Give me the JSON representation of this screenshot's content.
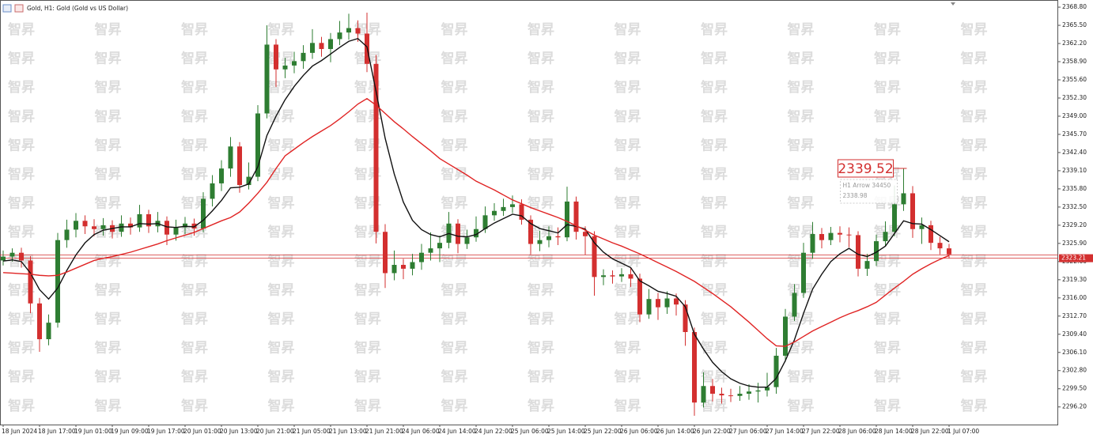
{
  "chart_data": {
    "type": "candlestick",
    "title": "Gold, H1:  Gold (Gold vs US Dollar)",
    "watermark": "智昇",
    "categories": [
      "18 Jun 2024",
      null,
      null,
      null,
      "18 Jun 17:00",
      null,
      null,
      null,
      "19 Jun 01:00",
      null,
      null,
      null,
      "19 Jun 09:00",
      null,
      null,
      null,
      "19 Jun 17:00",
      null,
      null,
      null,
      "20 Jun 01:00",
      null,
      null,
      null,
      "20 Jun 13:00",
      null,
      null,
      null,
      "20 Jun 21:00",
      null,
      null,
      null,
      "21 Jun 05:00",
      null,
      null,
      null,
      "21 Jun 13:00",
      null,
      null,
      null,
      "21 Jun 21:00",
      null,
      null,
      null,
      "24 Jun 06:00",
      null,
      null,
      null,
      "24 Jun 14:00",
      null,
      null,
      null,
      "24 Jun 22:00",
      null,
      null,
      null,
      "25 Jun 06:00",
      null,
      null,
      null,
      "25 Jun 14:00",
      null,
      null,
      null,
      "25 Jun 22:00",
      null,
      null,
      null,
      "26 Jun 06:00",
      null,
      null,
      null,
      "26 Jun 14:00",
      null,
      null,
      null,
      "26 Jun 22:00",
      null,
      null,
      null,
      "27 Jun 06:00",
      null,
      null,
      null,
      "27 Jun 14:00",
      null,
      null,
      null,
      "27 Jun 22:00",
      null,
      null,
      null,
      "28 Jun 06:00",
      null,
      null,
      null,
      "28 Jun 14:00",
      null,
      null,
      null,
      "28 Jun 22:00",
      null,
      null,
      null,
      "1 Jul 07:00"
    ],
    "open": [
      2322.8,
      2323.5,
      2324.2,
      2322.8,
      2315.0,
      2308.5,
      2311.5,
      2326.5,
      2328.4,
      2330.0,
      2329.0,
      2328.5,
      2329.2,
      2328.0,
      2329.5,
      2328.8,
      2331.2,
      2329.0,
      2330.0,
      2327.5,
      2328.8,
      2329.5,
      2328.6,
      2334.0,
      2336.8,
      2339.5,
      2343.5,
      2336.5,
      2338.0,
      2349.5,
      2362.0,
      2357.5,
      2358.2,
      2359.0,
      2360.5,
      2362.3,
      2361.2,
      2363.0,
      2364.2,
      2365.0,
      2364.0,
      2358.5,
      2328.0,
      2320.5,
      2322.0,
      2321.3,
      2322.5,
      2324.2,
      2325.0,
      2326.0,
      2329.5,
      2325.8,
      2327.0,
      2328.5,
      2331.0,
      2331.8,
      2332.5,
      2333.0,
      2330.2,
      2325.8,
      2326.5,
      2327.2,
      2327.0,
      2333.5,
      2328.0,
      2327.2,
      2319.8,
      2320.1,
      2319.9,
      2320.3,
      2319.5,
      2313.0,
      2315.8,
      2314.3,
      2315.9,
      2314.8,
      2309.8,
      2297.0,
      2300.0,
      2298.6,
      2298.3,
      2298.2,
      2298.6,
      2299.0,
      2299.2,
      2299.8,
      2305.5,
      2312.6,
      2316.9,
      2324.2,
      2327.6,
      2326.5,
      2327.8,
      2327.5,
      2327.4,
      2321.3,
      2322.7,
      2326.3,
      2328.0,
      2333.0,
      2335.0,
      2328.5,
      2329.2,
      2326.0,
      2325.0
    ],
    "high": [
      2324.6,
      2325.0,
      2325.1,
      2323.6,
      2316.0,
      2313.0,
      2327.8,
      2330.2,
      2331.4,
      2331.0,
      2330.3,
      2330.5,
      2330.1,
      2331.0,
      2330.6,
      2332.9,
      2332.0,
      2331.6,
      2330.8,
      2330.2,
      2330.7,
      2330.4,
      2335.2,
      2338.3,
      2341.0,
      2345.2,
      2344.3,
      2340.6,
      2351.0,
      2365.5,
      2363.0,
      2359.6,
      2360.7,
      2361.9,
      2364.8,
      2363.4,
      2364.1,
      2366.3,
      2367.6,
      2366.4,
      2367.8,
      2360.1,
      2329.4,
      2324.6,
      2323.1,
      2324.0,
      2325.8,
      2327.9,
      2327.3,
      2331.6,
      2330.3,
      2328.4,
      2330.8,
      2332.6,
      2333.2,
      2334.0,
      2334.6,
      2333.9,
      2331.0,
      2328.2,
      2329.0,
      2328.8,
      2336.2,
      2334.4,
      2329.0,
      2328.1,
      2321.2,
      2321.0,
      2321.4,
      2321.5,
      2320.4,
      2317.6,
      2316.9,
      2317.2,
      2316.8,
      2315.6,
      2310.6,
      2302.5,
      2301.3,
      2299.7,
      2299.5,
      2300.0,
      2300.3,
      2300.6,
      2302.4,
      2306.9,
      2314.0,
      2318.5,
      2326.0,
      2329.8,
      2328.7,
      2328.9,
      2329.0,
      2328.8,
      2328.1,
      2324.0,
      2327.5,
      2329.9,
      2336.4,
      2339.52,
      2336.3,
      2330.6,
      2330.0,
      2327.1,
      2325.8
    ],
    "low": [
      2321.9,
      2322.6,
      2321.5,
      2313.2,
      2306.2,
      2307.4,
      2310.6,
      2325.1,
      2327.0,
      2327.6,
      2327.2,
      2327.3,
      2326.8,
      2327.1,
      2327.5,
      2328.0,
      2327.8,
      2327.9,
      2325.6,
      2326.4,
      2327.6,
      2327.3,
      2327.9,
      2332.6,
      2335.4,
      2338.0,
      2335.1,
      2335.7,
      2337.2,
      2348.6,
      2354.3,
      2355.9,
      2356.8,
      2357.6,
      2359.4,
      2359.8,
      2358.8,
      2361.9,
      2362.9,
      2362.5,
      2357.0,
      2325.9,
      2317.8,
      2319.2,
      2319.4,
      2320.1,
      2321.1,
      2322.8,
      2322.5,
      2325.0,
      2324.1,
      2324.9,
      2326.2,
      2327.8,
      2330.0,
      2330.9,
      2331.4,
      2329.3,
      2323.9,
      2324.5,
      2325.2,
      2325.6,
      2326.3,
      2326.6,
      2323.8,
      2316.4,
      2318.3,
      2318.6,
      2318.9,
      2318.0,
      2311.6,
      2312.2,
      2312.0,
      2313.1,
      2312.8,
      2307.3,
      2294.6,
      2296.1,
      2297.2,
      2296.8,
      2297.1,
      2297.3,
      2297.5,
      2297.0,
      2298.1,
      2298.6,
      2304.4,
      2311.8,
      2316.0,
      2323.1,
      2325.0,
      2325.6,
      2326.1,
      2325.2,
      2319.9,
      2320.0,
      2321.8,
      2325.4,
      2327.2,
      2331.8,
      2326.9,
      2325.8,
      2324.7,
      2323.9,
      2323.2
    ],
    "close": [
      2323.5,
      2324.2,
      2322.8,
      2315.0,
      2308.5,
      2311.5,
      2326.5,
      2328.4,
      2330.0,
      2329.0,
      2328.5,
      2329.2,
      2328.0,
      2329.5,
      2328.8,
      2331.2,
      2329.0,
      2330.0,
      2327.5,
      2328.8,
      2329.5,
      2328.6,
      2334.0,
      2336.8,
      2339.5,
      2343.5,
      2336.5,
      2338.0,
      2349.5,
      2362.0,
      2357.5,
      2358.2,
      2359.0,
      2360.5,
      2362.3,
      2361.2,
      2363.0,
      2364.2,
      2365.0,
      2364.0,
      2358.5,
      2328.0,
      2320.5,
      2322.0,
      2321.3,
      2322.5,
      2324.2,
      2325.0,
      2326.0,
      2329.5,
      2325.8,
      2327.0,
      2328.5,
      2331.0,
      2331.8,
      2332.5,
      2333.0,
      2330.2,
      2325.8,
      2326.5,
      2327.2,
      2327.0,
      2333.5,
      2328.0,
      2327.2,
      2319.8,
      2320.1,
      2319.9,
      2320.3,
      2319.5,
      2313.0,
      2315.8,
      2314.3,
      2315.9,
      2314.8,
      2309.8,
      2297.0,
      2300.0,
      2298.6,
      2298.3,
      2298.2,
      2298.6,
      2299.0,
      2299.2,
      2299.8,
      2305.5,
      2312.6,
      2316.9,
      2324.2,
      2327.6,
      2326.5,
      2327.8,
      2327.5,
      2327.4,
      2321.3,
      2322.7,
      2326.3,
      2328.0,
      2333.0,
      2335.0,
      2328.5,
      2329.2,
      2326.0,
      2325.0,
      2323.9
    ],
    "up_color": "#2e7d32",
    "down_color": "#d32f2f",
    "series": [
      {
        "color": "#111111",
        "values": [
          2322.7,
          2322.9,
          2322.6,
          2320.5,
          2317.5,
          2315.8,
          2317.8,
          2321.0,
          2323.8,
          2326.0,
          2327.5,
          2328.3,
          2328.6,
          2328.9,
          2328.9,
          2329.5,
          2329.4,
          2329.5,
          2328.9,
          2328.8,
          2329.0,
          2328.9,
          2330.1,
          2331.8,
          2333.7,
          2336.0,
          2336.1,
          2336.7,
          2339.8,
          2345.5,
          2349.0,
          2352.0,
          2354.4,
          2356.4,
          2358.1,
          2359.1,
          2360.3,
          2361.5,
          2362.6,
          2363.1,
          2361.6,
          2353.5,
          2345.0,
          2338.5,
          2333.4,
          2330.1,
          2328.4,
          2327.5,
          2327.1,
          2327.7,
          2327.2,
          2327.1,
          2327.5,
          2328.6,
          2329.6,
          2330.4,
          2331.2,
          2330.9,
          2329.5,
          2328.6,
          2328.2,
          2327.8,
          2329.3,
          2329.0,
          2328.5,
          2326.0,
          2324.3,
          2323.1,
          2322.3,
          2321.5,
          2319.1,
          2318.2,
          2317.2,
          2316.8,
          2316.3,
          2314.4,
          2309.4,
          2306.7,
          2304.3,
          2302.6,
          2301.3,
          2300.5,
          2300.0,
          2299.8,
          2299.8,
          2301.4,
          2304.6,
          2308.4,
          2313.2,
          2317.6,
          2320.3,
          2322.6,
          2324.0,
          2325.0,
          2323.9,
          2323.5,
          2324.3,
          2325.4,
          2327.7,
          2330.0,
          2329.5,
          2329.4,
          2328.4,
          2327.3,
          2326.2
        ]
      },
      {
        "color": "#e02424",
        "values": [
          2320.6,
          2320.5,
          2320.4,
          2320.3,
          2320.1,
          2320.0,
          2320.1,
          2320.7,
          2321.4,
          2322.1,
          2322.8,
          2323.2,
          2323.5,
          2323.9,
          2324.3,
          2324.8,
          2325.3,
          2325.8,
          2326.4,
          2326.9,
          2327.4,
          2327.9,
          2328.6,
          2329.3,
          2330.0,
          2330.6,
          2331.6,
          2333.2,
          2335.0,
          2337.0,
          2339.5,
          2341.8,
          2343.0,
          2344.2,
          2345.3,
          2346.3,
          2347.3,
          2348.5,
          2349.8,
          2351.2,
          2352.2,
          2351.0,
          2349.5,
          2348.0,
          2346.7,
          2345.3,
          2344.0,
          2342.7,
          2341.3,
          2340.3,
          2339.3,
          2338.3,
          2337.2,
          2336.4,
          2335.6,
          2334.7,
          2333.8,
          2333.1,
          2332.4,
          2331.8,
          2331.2,
          2330.6,
          2329.9,
          2329.1,
          2328.3,
          2327.4,
          2326.7,
          2326.0,
          2325.4,
          2324.7,
          2324.0,
          2323.2,
          2322.4,
          2321.6,
          2320.8,
          2319.9,
          2319.0,
          2317.9,
          2316.8,
          2315.6,
          2314.4,
          2313.0,
          2311.6,
          2310.1,
          2308.6,
          2307.3,
          2307.2,
          2308.0,
          2309.0,
          2310.0,
          2310.8,
          2311.6,
          2312.4,
          2313.1,
          2313.7,
          2314.4,
          2315.2,
          2316.5,
          2317.8,
          2319.0,
          2320.3,
          2321.3,
          2322.2,
          2323.0,
          2323.7
        ]
      }
    ],
    "ylim": [
      2293.0,
      2370.1
    ],
    "yticks": [
      {
        "value": 2368.8,
        "label": "2368.80"
      },
      {
        "value": 2365.5,
        "label": "2365.50"
      },
      {
        "value": 2362.2,
        "label": "2362.20"
      },
      {
        "value": 2358.9,
        "label": "2358.90"
      },
      {
        "value": 2355.6,
        "label": "2355.60"
      },
      {
        "value": 2352.3,
        "label": "2352.30"
      },
      {
        "value": 2349.0,
        "label": "2349.00"
      },
      {
        "value": 2345.7,
        "label": "2345.70"
      },
      {
        "value": 2342.4,
        "label": "2342.40"
      },
      {
        "value": 2339.1,
        "label": "2339.10"
      },
      {
        "value": 2335.8,
        "label": "2335.80"
      },
      {
        "value": 2332.5,
        "label": "2332.50"
      },
      {
        "value": 2329.2,
        "label": "2329.20"
      },
      {
        "value": 2325.9,
        "label": "2325.90"
      },
      {
        "value": 2322.6,
        "label": "2322.60"
      },
      {
        "value": 2319.3,
        "label": "2319.30"
      },
      {
        "value": 2316.0,
        "label": "2316.00"
      },
      {
        "value": 2312.7,
        "label": "2312.70"
      },
      {
        "value": 2309.4,
        "label": "2309.40"
      },
      {
        "value": 2306.1,
        "label": "2306.10"
      },
      {
        "value": 2302.8,
        "label": "2302.80"
      },
      {
        "value": 2299.5,
        "label": "2299.50"
      },
      {
        "value": 2296.2,
        "label": "2296.20"
      }
    ],
    "bid": {
      "value": 2323.21,
      "label": "2323.21"
    },
    "ask": 2323.81,
    "price_label": {
      "value": 2339.52,
      "label": "2339.52"
    },
    "tooltip": [
      "H1 Arrow 34450",
      "2338.98"
    ]
  }
}
